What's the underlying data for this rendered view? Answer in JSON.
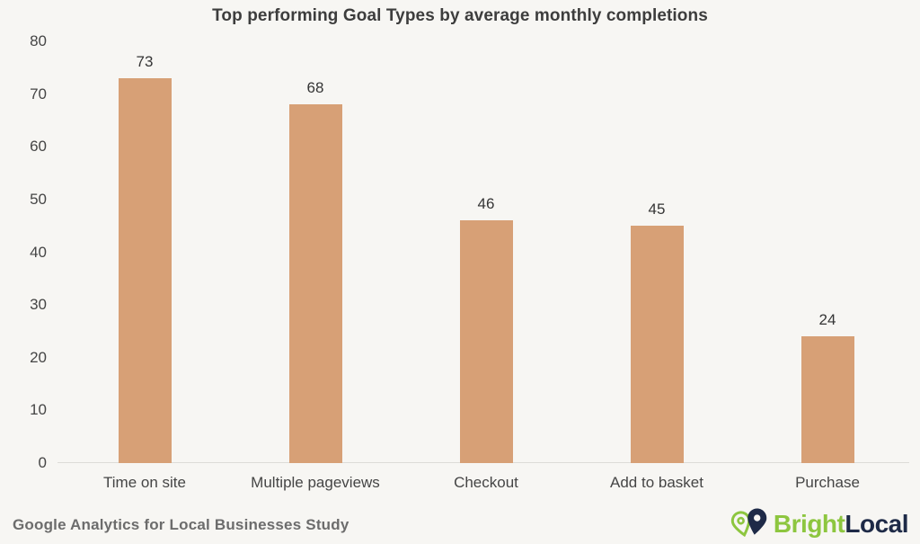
{
  "footer": {
    "source": "Google Analytics for Local Businesses Study"
  },
  "logo": {
    "first": "Bright",
    "second": "Local",
    "green": "#8dc63f",
    "navy": "#1e2a47"
  },
  "colors": {
    "background": "#f7f6f3",
    "bar": "#d7a076",
    "title_text": "#3d3d3d",
    "axis_text": "#454545",
    "axis_line": "#dcdbd7",
    "source_text": "#6c6c6c"
  },
  "chart_data": {
    "type": "bar",
    "title": "Top performing Goal Types by average monthly completions",
    "categories": [
      "Time on site",
      "Multiple pageviews",
      "Checkout",
      "Add to basket",
      "Purchase"
    ],
    "values": [
      73,
      68,
      46,
      45,
      24
    ],
    "xlabel": "",
    "ylabel": "",
    "ylim": [
      0,
      80
    ],
    "yticks": [
      0,
      10,
      20,
      30,
      40,
      50,
      60,
      70,
      80
    ],
    "grid": false,
    "legend": false,
    "value_labels": true,
    "bar_color": "#d7a076"
  }
}
